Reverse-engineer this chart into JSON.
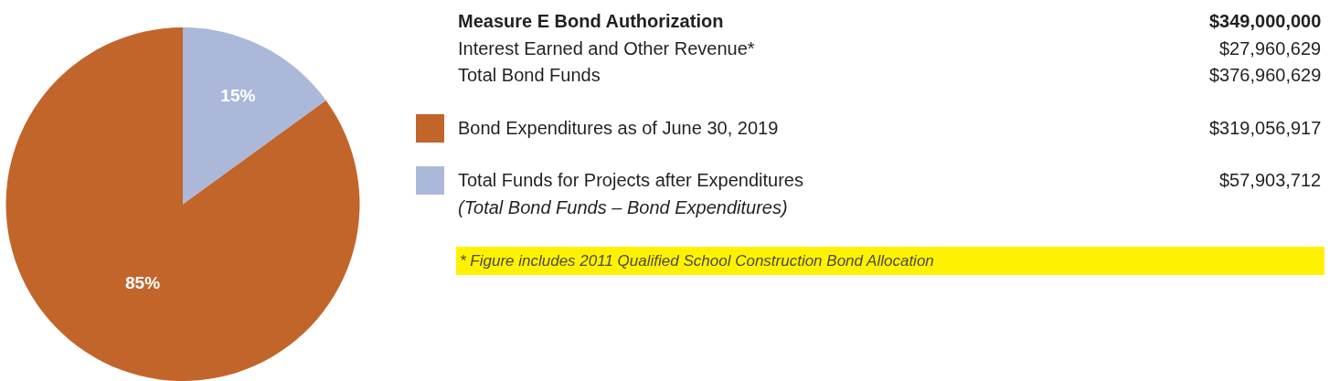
{
  "chart_data": {
    "type": "pie",
    "categories": [
      "Bond Expenditures as of June 30, 2019",
      "Total Funds for Projects after Expenditures"
    ],
    "values": [
      85,
      15
    ],
    "colors": [
      "#c2652a",
      "#abb8d9"
    ],
    "value_labels": [
      "85%",
      "15%"
    ],
    "legend": "right",
    "annotations": [
      "Measure E Bond Authorization",
      "$349,000,000",
      "Interest Earned and Other Revenue*",
      "$27,960,629",
      "Total Bond Funds",
      "$376,960,629",
      "$319,056,917",
      "$57,903,712",
      "(Total Bond Funds – Bond Expenditures)",
      "* Figure includes 2011 Qualified School Construction Bond Allocation"
    ]
  }
}
